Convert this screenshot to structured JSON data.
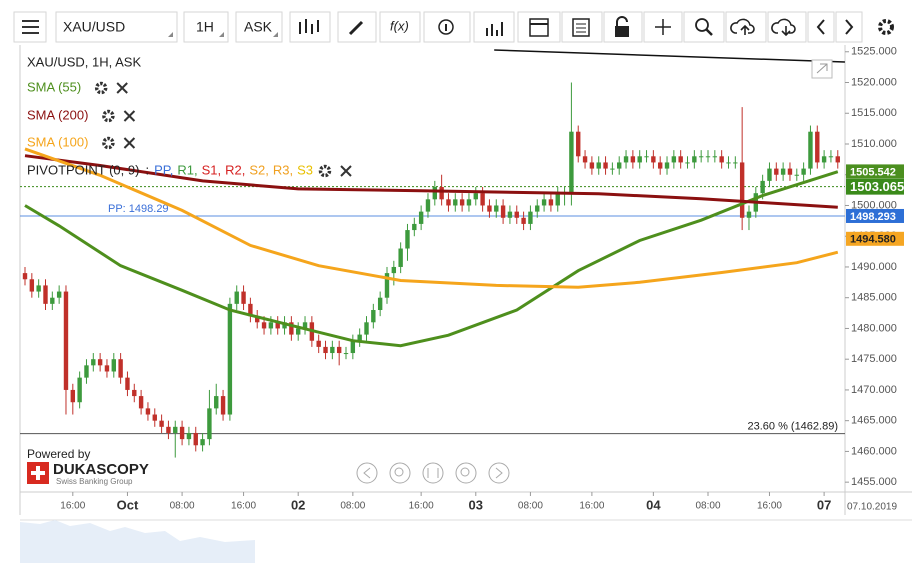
{
  "toolbar": {
    "symbol": "XAU/USD",
    "period": "1H",
    "side": "ASK",
    "fx": "f(x)"
  },
  "chart_data": {
    "type": "candlestick",
    "title": "XAU/USD, 1H, ASK",
    "categories": [
      null,
      null,
      null,
      null,
      null,
      null,
      null,
      "16:00",
      null,
      null,
      null,
      null,
      null,
      null,
      null,
      "Oct",
      null,
      null,
      null,
      null,
      null,
      null,
      null,
      "08:00",
      null,
      null,
      null,
      null,
      null,
      null,
      null,
      null,
      "16:00",
      null,
      null,
      null,
      null,
      null,
      null,
      null,
      "02",
      null,
      null,
      null,
      null,
      null,
      null,
      null,
      "08:00",
      null,
      null,
      null,
      null,
      null,
      null,
      null,
      null,
      null,
      "16:00",
      null,
      null,
      null,
      null,
      null,
      null,
      null,
      "03",
      null,
      null,
      null,
      null,
      null,
      null,
      null,
      "08:00",
      null,
      null,
      null,
      null,
      null,
      null,
      null,
      null,
      "16:00",
      null,
      null,
      null,
      null,
      null,
      null,
      null,
      null,
      "04",
      null,
      null,
      null,
      null,
      null,
      null,
      null,
      "08:00",
      null,
      null,
      null,
      null,
      null,
      null,
      null,
      null,
      "16:00",
      null,
      null,
      null,
      null,
      null,
      null,
      null,
      "07",
      null,
      null
    ],
    "date_label": "07.10.2019",
    "open": [
      1489,
      1488,
      1486,
      1487,
      1484,
      1485,
      1486,
      1470,
      1468,
      1472,
      1474,
      1475,
      1474,
      1473,
      1475,
      1472,
      1470,
      1469,
      1467,
      1466,
      1465,
      1464,
      1463,
      1464,
      1462,
      1463,
      1461,
      1462,
      1467,
      1469,
      1466,
      1484,
      1486,
      1484,
      1482,
      1481,
      1480,
      1481,
      1480,
      1481,
      1479,
      1480,
      1481,
      1478,
      1477,
      1476,
      1477,
      1476,
      1476,
      1478,
      1479,
      1481,
      1483,
      1485,
      1489,
      1490,
      1493,
      1496,
      1497,
      1499,
      1501,
      1503,
      1501,
      1500,
      1501,
      1500,
      1501,
      1502,
      1500,
      1499,
      1500,
      1498,
      1499,
      1498,
      1497,
      1499,
      1500,
      1501,
      1500,
      1502,
      1502,
      1512,
      1508,
      1507,
      1506,
      1507,
      1506,
      1506,
      1507,
      1508,
      1507,
      1508,
      1508,
      1507,
      1506,
      1507,
      1508,
      1507,
      1507,
      1508,
      1508,
      1508,
      1508,
      1507,
      1507,
      1507,
      1498,
      1499,
      1502,
      1504,
      1506,
      1505,
      1506,
      1505,
      1505,
      1506,
      1512,
      1507,
      1508,
      1508
    ],
    "high": [
      1490,
      1489,
      1488,
      1488,
      1486,
      1487,
      1487,
      1471,
      1473,
      1475,
      1476,
      1476,
      1475,
      1476,
      1476,
      1473,
      1471,
      1470,
      1468,
      1467,
      1466,
      1465,
      1465,
      1465,
      1464,
      1464,
      1463,
      1470,
      1471,
      1470,
      1485,
      1487,
      1487,
      1485,
      1483,
      1482,
      1482,
      1482,
      1482,
      1482,
      1481,
      1482,
      1482,
      1479,
      1478,
      1478,
      1478,
      1477,
      1479,
      1480,
      1482,
      1484,
      1486,
      1490,
      1491,
      1494,
      1497,
      1498,
      1500,
      1502,
      1504,
      1505,
      1502,
      1502,
      1502,
      1502,
      1503,
      1503,
      1501,
      1501,
      1501,
      1500,
      1500,
      1499,
      1500,
      1501,
      1502,
      1502,
      1503,
      1503,
      1520,
      1513,
      1509,
      1508,
      1508,
      1508,
      1507,
      1508,
      1509,
      1509,
      1509,
      1509,
      1509,
      1508,
      1508,
      1509,
      1509,
      1508,
      1509,
      1509,
      1509,
      1509,
      1509,
      1508,
      1508,
      1516,
      1500,
      1503,
      1505,
      1507,
      1507,
      1507,
      1507,
      1506,
      1507,
      1513,
      1513,
      1509,
      1509,
      1509
    ],
    "low": [
      1487,
      1485,
      1485,
      1483,
      1483,
      1484,
      1466,
      1466,
      1467,
      1471,
      1473,
      1473,
      1472,
      1472,
      1471,
      1469,
      1468,
      1466,
      1465,
      1464,
      1463,
      1462,
      1459,
      1461,
      1461,
      1460,
      1460,
      1461,
      1466,
      1465,
      1465,
      1483,
      1483,
      1481,
      1480,
      1479,
      1479,
      1479,
      1479,
      1478,
      1478,
      1479,
      1477,
      1476,
      1475,
      1475,
      1474,
      1475,
      1475,
      1477,
      1478,
      1480,
      1482,
      1484,
      1487,
      1489,
      1491,
      1495,
      1496,
      1498,
      1500,
      1500,
      1499,
      1499,
      1499,
      1499,
      1500,
      1499,
      1498,
      1498,
      1497,
      1497,
      1497,
      1496,
      1496,
      1498,
      1499,
      1499,
      1499,
      1500,
      1500,
      1507,
      1506,
      1505,
      1505,
      1505,
      1505,
      1505,
      1506,
      1506,
      1506,
      1507,
      1506,
      1505,
      1505,
      1506,
      1506,
      1506,
      1506,
      1507,
      1507,
      1507,
      1506,
      1506,
      1506,
      1496,
      1496,
      1498,
      1501,
      1503,
      1504,
      1504,
      1504,
      1504,
      1504,
      1505,
      1506,
      1506,
      1507,
      1506
    ],
    "close": [
      1488,
      1486,
      1487,
      1484,
      1485,
      1486,
      1470,
      1468,
      1472,
      1474,
      1475,
      1474,
      1473,
      1475,
      1472,
      1470,
      1469,
      1467,
      1466,
      1465,
      1464,
      1463,
      1464,
      1462,
      1463,
      1461,
      1462,
      1467,
      1469,
      1466,
      1484,
      1486,
      1484,
      1482,
      1481,
      1480,
      1481,
      1480,
      1481,
      1479,
      1480,
      1481,
      1478,
      1477,
      1476,
      1477,
      1476,
      1476,
      1478,
      1479,
      1481,
      1483,
      1485,
      1489,
      1490,
      1493,
      1496,
      1497,
      1499,
      1501,
      1503,
      1501,
      1500,
      1501,
      1500,
      1501,
      1502,
      1500,
      1499,
      1500,
      1498,
      1499,
      1498,
      1497,
      1499,
      1500,
      1501,
      1500,
      1502,
      1502,
      1512,
      1508,
      1507,
      1506,
      1507,
      1506,
      1506,
      1507,
      1508,
      1507,
      1508,
      1508,
      1507,
      1506,
      1507,
      1508,
      1507,
      1507,
      1508,
      1508,
      1508,
      1508,
      1507,
      1507,
      1507,
      1498,
      1499,
      1502,
      1504,
      1506,
      1505,
      1506,
      1505,
      1505,
      1506,
      1512,
      1507,
      1508,
      1508,
      1507
    ],
    "up_color": "#3d9a3d",
    "down_color": "#c0302a",
    "ylim": [
      1453.4,
      1526.1
    ],
    "yticks": [
      {
        "value": 1525,
        "label": "1525.000"
      },
      {
        "value": 1520,
        "label": "1520.000"
      },
      {
        "value": 1515,
        "label": "1515.000"
      },
      {
        "value": 1510,
        "label": "1510.000"
      },
      {
        "value": 1505,
        "label": "1505.000"
      },
      {
        "value": 1500,
        "label": "1500.000"
      },
      {
        "value": 1495,
        "label": "1495.000"
      },
      {
        "value": 1490,
        "label": "1490.000"
      },
      {
        "value": 1485,
        "label": "1485.000"
      },
      {
        "value": 1480,
        "label": "1480.000"
      },
      {
        "value": 1475,
        "label": "1475.000"
      },
      {
        "value": 1470,
        "label": "1470.000"
      },
      {
        "value": 1465,
        "label": "1465.000"
      },
      {
        "value": 1460,
        "label": "1460.000"
      },
      {
        "value": 1455,
        "label": "1455.000"
      }
    ],
    "lines": [
      {
        "name": "SMA (55)",
        "color": "#4e8f1d",
        "x": [
          0,
          5,
          14,
          23,
          30,
          39,
          48,
          55,
          62,
          72,
          81,
          90,
          99,
          108,
          119
        ],
        "values": [
          1500,
          1496.7,
          1490.2,
          1486.2,
          1483,
          1480.5,
          1478,
          1477.2,
          1478.9,
          1483,
          1489.4,
          1494.3,
          1497.6,
          1501.6,
          1505.5
        ]
      },
      {
        "name": "SMA (200)",
        "color": "#8b1010",
        "x": [
          0,
          11,
          26,
          40,
          58,
          84,
          99,
          119
        ],
        "values": [
          1508.1,
          1506.5,
          1504,
          1502.7,
          1502.4,
          1501.9,
          1501.1,
          1499.7
        ]
      },
      {
        "name": "SMA (100)",
        "color": "#f5a51c",
        "x": [
          0,
          11,
          23,
          33,
          43,
          55,
          69,
          81,
          90,
          102,
          113,
          119
        ],
        "values": [
          1509.2,
          1504.9,
          1499.2,
          1493.5,
          1490.2,
          1487.8,
          1487,
          1486.7,
          1487.5,
          1489.1,
          1490.7,
          1492.4
        ]
      }
    ],
    "pivot": {
      "name": "PIVOTPOINT (0, 9)",
      "prefix": ":",
      "levels": [
        {
          "name": "PP,",
          "color": "#3a6fd8"
        },
        {
          "name": "R1,",
          "color": "#3d9a3d"
        },
        {
          "name": "S1,",
          "color": "#d62020"
        },
        {
          "name": "R2,",
          "color": "#d62020"
        },
        {
          "name": "S2,",
          "color": "#f0a020"
        },
        {
          "name": "R3,",
          "color": "#f0a020"
        },
        {
          "name": "S3",
          "color": "#e8c000"
        }
      ],
      "pp": {
        "value": 1498.29,
        "label": "PP: 1498.29",
        "color": "#5b8fe0"
      }
    },
    "fibo": {
      "value": 1462.89,
      "label": "23.60 % (1462.89)"
    },
    "current_price": {
      "value": 1503.065,
      "label": "1503.065",
      "color": "#3a8a1a"
    },
    "price_tags": [
      {
        "value": 1505.542,
        "label": "1505.542",
        "color": "#4b8f1f"
      },
      {
        "value": 1498.293,
        "label": "1498.293",
        "color": "#2d6fd6"
      },
      {
        "value": 1494.58,
        "label": "1494.580",
        "color": "#f5a623"
      }
    ]
  },
  "branding": {
    "powered": "Powered by",
    "name": "DUKASCOPY",
    "tagline": "Swiss Banking Group"
  }
}
